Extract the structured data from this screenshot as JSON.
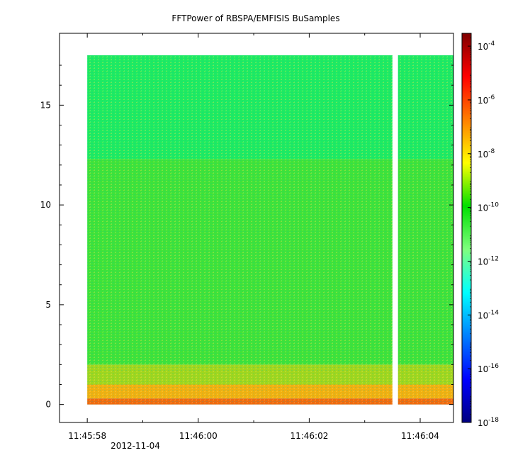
{
  "chart_data": {
    "type": "heatmap",
    "title": "FFTPower of RBSPA/EMFISIS  BuSamples",
    "xlabel": "",
    "ylabel": "",
    "x_ticks": [
      "11:45:58",
      "11:46:00",
      "11:46:02",
      "11:46:04"
    ],
    "x_date_label": "2012-11-04",
    "x_range": [
      "11:45:57.5",
      "11:46:04.6"
    ],
    "y_ticks": [
      "0",
      "5",
      "10",
      "15"
    ],
    "ylim": [
      -0.9,
      18.6
    ],
    "colorbar": {
      "scale": "log",
      "range": [
        1e-18,
        0.0003
      ],
      "tick_base": "10",
      "tick_exponents": [
        "-4",
        "-6",
        "-8",
        "-10",
        "-12",
        "-14",
        "-16",
        "-18"
      ],
      "colormap": [
        "#00007f",
        "#0000ff",
        "#007fff",
        "#00ffff",
        "#7fff7f",
        "#00e000",
        "#ffff00",
        "#ff7f00",
        "#ff0000",
        "#7f0000"
      ]
    },
    "data_extent": {
      "x_start": "11:45:58.0",
      "x_end": "11:46:04.6",
      "y_min": 0,
      "y_max": 17.5
    },
    "data_gap": {
      "x_start": "11:46:03.5",
      "x_end": "11:46:03.6"
    },
    "bands": [
      {
        "y_from": 12.3,
        "y_to": 17.5,
        "level_exp": -12.5,
        "color": "#1eea62"
      },
      {
        "y_from": 2.0,
        "y_to": 12.3,
        "level_exp": -10.5,
        "color": "#3ee23a"
      },
      {
        "y_from": 1.0,
        "y_to": 2.0,
        "level_exp": -9.2,
        "color": "#9fd61e"
      },
      {
        "y_from": 0.3,
        "y_to": 1.0,
        "level_exp": -8.0,
        "color": "#f0b010"
      },
      {
        "y_from": 0.0,
        "y_to": 0.3,
        "level_exp": -7.0,
        "color": "#ee6a10"
      }
    ],
    "grid": false,
    "legend": "none"
  }
}
